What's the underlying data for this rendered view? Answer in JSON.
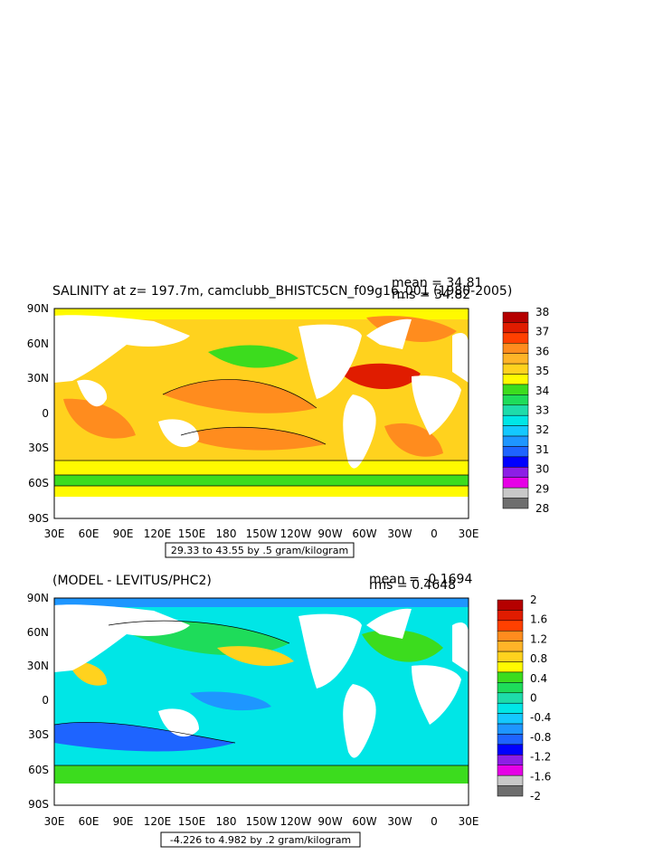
{
  "colors": {
    "ocean_fill": "#ffffff",
    "land": "#ffffff",
    "contour_line": "#000000"
  },
  "panels": [
    {
      "title": "SALINITY at z= 197.7m, camclubb_BHISTC5CN_f09g16_001 (1980-2005)",
      "mean": "mean = 34.81",
      "rms": "rms = 34.82",
      "range": "29.33 to 43.55 by .5 gram/kilogram",
      "legend": {
        "labels": [
          "38",
          "37",
          "36",
          "35",
          "34",
          "33",
          "32",
          "31",
          "30",
          "29",
          "28"
        ],
        "colors": [
          "#b50000",
          "#e01c00",
          "#ff4000",
          "#ff8c1e",
          "#ffb428",
          "#ffd21e",
          "#fffa00",
          "#3cdc1e",
          "#1edc5a",
          "#1edcaa",
          "#00e6e6",
          "#14c8ff",
          "#1e96ff",
          "#1e64ff",
          "#0000ff",
          "#8c1ee6",
          "#e600e6",
          "#c8c8c8",
          "#6e6e6e"
        ]
      }
    },
    {
      "title": "(MODEL - LEVITUS/PHC2)",
      "mean": "mean = -0.1694",
      "rms": "rms = 0.4648",
      "range": "-4.226 to 4.982 by .2 gram/kilogram",
      "legend": {
        "labels": [
          "2",
          "1.6",
          "1.2",
          "0.8",
          "0.4",
          "0",
          "-0.4",
          "-0.8",
          "-1.2",
          "-1.6",
          "-2"
        ],
        "colors": [
          "#b50000",
          "#e01c00",
          "#ff4000",
          "#ff8c1e",
          "#ffb428",
          "#ffd21e",
          "#fffa00",
          "#3cdc1e",
          "#1edc5a",
          "#1edcaa",
          "#00e6e6",
          "#14c8ff",
          "#1e96ff",
          "#1e64ff",
          "#0000ff",
          "#8c1ee6",
          "#e600e6",
          "#c8c8c8",
          "#6e6e6e"
        ]
      }
    }
  ],
  "axes": {
    "x_ticks": [
      "30E",
      "60E",
      "90E",
      "120E",
      "150E",
      "180",
      "150W",
      "120W",
      "90W",
      "60W",
      "30W",
      "0",
      "30E"
    ],
    "y_ticks": [
      "90N",
      "60N",
      "30N",
      "0",
      "30S",
      "60S",
      "90S"
    ]
  }
}
